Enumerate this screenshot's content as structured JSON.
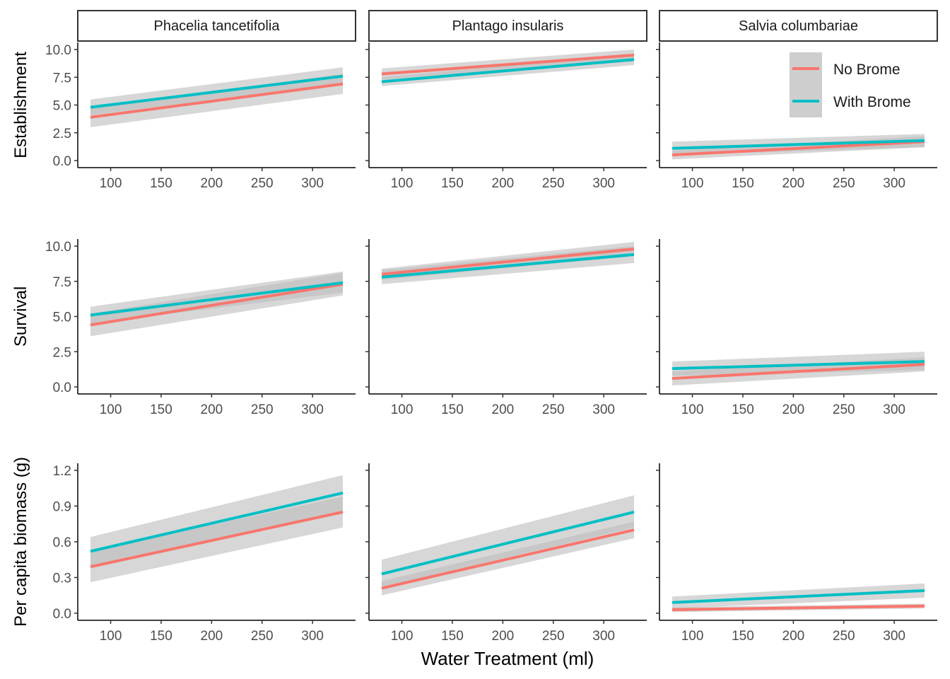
{
  "chart_data": {
    "type": "line",
    "facets": {
      "columns": [
        "Phacelia tancetifolia",
        "Plantago insularis",
        "Salvia columbariae"
      ],
      "rows": [
        {
          "ylabel": "Establishment",
          "ylim": [
            0,
            10.0
          ],
          "yticks": [
            "0.0",
            "2.5",
            "5.0",
            "7.5",
            "10.0"
          ],
          "tick_values": [
            0,
            2.5,
            5,
            7.5,
            10
          ]
        },
        {
          "ylabel": "Survival",
          "ylim": [
            0,
            10.0
          ],
          "yticks": [
            "0.0",
            "2.5",
            "5.0",
            "7.5",
            "10.0"
          ],
          "tick_values": [
            0,
            2.5,
            5,
            7.5,
            10
          ]
        },
        {
          "ylabel": "Per capita biomass (g)",
          "ylim": [
            0,
            1.2
          ],
          "yticks": [
            "0.0",
            "0.3",
            "0.6",
            "0.9",
            "1.2"
          ],
          "tick_values": [
            0,
            0.3,
            0.6,
            0.9,
            1.2
          ]
        }
      ]
    },
    "xlabel": "Water Treatment (ml)",
    "xticks": [
      "100",
      "150",
      "200",
      "250",
      "300"
    ],
    "xtick_values": [
      100,
      150,
      200,
      250,
      300
    ],
    "xlim": [
      80,
      330
    ],
    "legend": {
      "position": "top-right",
      "entries": [
        {
          "label": "No Brome",
          "color": "#F8766D"
        },
        {
          "label": "With Brome",
          "color": "#00BFC4"
        }
      ]
    },
    "ribbon_color": "#bdbdbd",
    "panels": [
      {
        "row": 0,
        "col": 0,
        "series": [
          {
            "legend": "No Brome",
            "x": [
              80,
              330
            ],
            "y": [
              3.9,
              6.9
            ],
            "lower": [
              3.0,
              6.0
            ],
            "upper": [
              4.8,
              7.8
            ]
          },
          {
            "legend": "With Brome",
            "x": [
              80,
              330
            ],
            "y": [
              4.8,
              7.6
            ],
            "lower": [
              4.1,
              6.9
            ],
            "upper": [
              5.5,
              8.4
            ]
          }
        ]
      },
      {
        "row": 0,
        "col": 1,
        "series": [
          {
            "legend": "No Brome",
            "x": [
              80,
              330
            ],
            "y": [
              7.8,
              9.5
            ],
            "lower": [
              7.3,
              8.9
            ],
            "upper": [
              8.3,
              10.0
            ]
          },
          {
            "legend": "With Brome",
            "x": [
              80,
              330
            ],
            "y": [
              7.1,
              9.1
            ],
            "lower": [
              6.7,
              8.6
            ],
            "upper": [
              7.5,
              9.6
            ]
          }
        ]
      },
      {
        "row": 0,
        "col": 2,
        "series": [
          {
            "legend": "No Brome",
            "x": [
              80,
              330
            ],
            "y": [
              0.5,
              1.7
            ],
            "lower": [
              0.1,
              1.2
            ],
            "upper": [
              0.9,
              2.2
            ]
          },
          {
            "legend": "With Brome",
            "x": [
              80,
              330
            ],
            "y": [
              1.1,
              1.8
            ],
            "lower": [
              0.5,
              1.2
            ],
            "upper": [
              1.7,
              2.4
            ]
          }
        ]
      },
      {
        "row": 1,
        "col": 0,
        "series": [
          {
            "legend": "No Brome",
            "x": [
              80,
              330
            ],
            "y": [
              4.4,
              7.3
            ],
            "lower": [
              3.6,
              6.5
            ],
            "upper": [
              5.2,
              8.1
            ]
          },
          {
            "legend": "With Brome",
            "x": [
              80,
              330
            ],
            "y": [
              5.1,
              7.4
            ],
            "lower": [
              4.5,
              6.7
            ],
            "upper": [
              5.7,
              8.2
            ]
          }
        ]
      },
      {
        "row": 1,
        "col": 1,
        "series": [
          {
            "legend": "No Brome",
            "x": [
              80,
              330
            ],
            "y": [
              8.0,
              9.8
            ],
            "lower": [
              7.6,
              9.3
            ],
            "upper": [
              8.4,
              10.3
            ]
          },
          {
            "legend": "With Brome",
            "x": [
              80,
              330
            ],
            "y": [
              7.8,
              9.4
            ],
            "lower": [
              7.3,
              8.8
            ],
            "upper": [
              8.3,
              10.0
            ]
          }
        ]
      },
      {
        "row": 1,
        "col": 2,
        "series": [
          {
            "legend": "No Brome",
            "x": [
              80,
              330
            ],
            "y": [
              0.6,
              1.6
            ],
            "lower": [
              0.1,
              1.1
            ],
            "upper": [
              1.1,
              2.1
            ]
          },
          {
            "legend": "With Brome",
            "x": [
              80,
              330
            ],
            "y": [
              1.3,
              1.8
            ],
            "lower": [
              0.8,
              1.2
            ],
            "upper": [
              1.8,
              2.5
            ]
          }
        ]
      },
      {
        "row": 2,
        "col": 0,
        "series": [
          {
            "legend": "No Brome",
            "x": [
              80,
              330
            ],
            "y": [
              0.39,
              0.85
            ],
            "lower": [
              0.26,
              0.72
            ],
            "upper": [
              0.52,
              0.98
            ]
          },
          {
            "legend": "With Brome",
            "x": [
              80,
              330
            ],
            "y": [
              0.52,
              1.01
            ],
            "lower": [
              0.4,
              0.86
            ],
            "upper": [
              0.64,
              1.16
            ]
          }
        ]
      },
      {
        "row": 2,
        "col": 1,
        "series": [
          {
            "legend": "No Brome",
            "x": [
              80,
              330
            ],
            "y": [
              0.21,
              0.7
            ],
            "lower": [
              0.15,
              0.63
            ],
            "upper": [
              0.27,
              0.77
            ]
          },
          {
            "legend": "With Brome",
            "x": [
              80,
              330
            ],
            "y": [
              0.33,
              0.85
            ],
            "lower": [
              0.22,
              0.72
            ],
            "upper": [
              0.45,
              0.99
            ]
          }
        ]
      },
      {
        "row": 2,
        "col": 2,
        "series": [
          {
            "legend": "No Brome",
            "x": [
              80,
              330
            ],
            "y": [
              0.03,
              0.06
            ],
            "lower": [
              0.01,
              0.04
            ],
            "upper": [
              0.05,
              0.08
            ]
          },
          {
            "legend": "With Brome",
            "x": [
              80,
              330
            ],
            "y": [
              0.09,
              0.19
            ],
            "lower": [
              0.04,
              0.13
            ],
            "upper": [
              0.14,
              0.25
            ]
          }
        ]
      }
    ]
  }
}
